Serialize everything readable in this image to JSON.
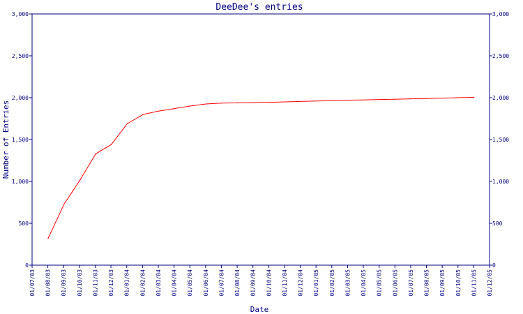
{
  "chart_data": {
    "type": "line",
    "title": "DeeDee's entries",
    "xlabel": "Date",
    "ylabel": "Number of Entries",
    "ylim": [
      0,
      3000
    ],
    "y_ticks": [
      0,
      500,
      1000,
      1500,
      2000,
      2500,
      3000
    ],
    "y_tick_labels": [
      "0",
      "500",
      "1,000",
      "1,500",
      "2,000",
      "2,500",
      "3,000"
    ],
    "x_tick_labels": [
      "01/07/03",
      "01/08/03",
      "01/09/03",
      "01/10/03",
      "01/11/03",
      "01/12/03",
      "01/01/04",
      "01/02/04",
      "01/03/04",
      "01/04/04",
      "01/05/04",
      "01/06/04",
      "01/07/04",
      "01/08/04",
      "01/09/04",
      "01/10/04",
      "01/11/04",
      "01/12/04",
      "01/01/05",
      "01/02/05",
      "01/03/05",
      "01/04/05",
      "01/05/05",
      "01/06/05",
      "01/07/05",
      "01/08/05",
      "01/09/05",
      "01/10/05",
      "01/11/05",
      "01/12/05"
    ],
    "grid": false,
    "y_axis_right": true,
    "series": [
      {
        "color": "#ff0000",
        "points": [
          {
            "x": "2003-08-01",
            "y": 320
          },
          {
            "x": "2003-09-01",
            "y": 730
          },
          {
            "x": "2003-10-01",
            "y": 1010
          },
          {
            "x": "2003-11-01",
            "y": 1330
          },
          {
            "x": "2003-12-01",
            "y": 1440
          },
          {
            "x": "2004-01-01",
            "y": 1690
          },
          {
            "x": "2004-02-01",
            "y": 1800
          },
          {
            "x": "2004-03-01",
            "y": 1840
          },
          {
            "x": "2004-04-01",
            "y": 1870
          },
          {
            "x": "2004-05-01",
            "y": 1900
          },
          {
            "x": "2004-06-01",
            "y": 1925
          },
          {
            "x": "2004-07-01",
            "y": 1935
          },
          {
            "x": "2004-08-01",
            "y": 1938
          },
          {
            "x": "2004-09-01",
            "y": 1942
          },
          {
            "x": "2004-10-01",
            "y": 1945
          },
          {
            "x": "2004-11-01",
            "y": 1950
          },
          {
            "x": "2004-12-01",
            "y": 1955
          },
          {
            "x": "2005-01-01",
            "y": 1960
          },
          {
            "x": "2005-02-01",
            "y": 1965
          },
          {
            "x": "2005-03-01",
            "y": 1970
          },
          {
            "x": "2005-04-01",
            "y": 1973
          },
          {
            "x": "2005-05-01",
            "y": 1978
          },
          {
            "x": "2005-06-01",
            "y": 1982
          },
          {
            "x": "2005-07-01",
            "y": 1987
          },
          {
            "x": "2005-08-01",
            "y": 1990
          },
          {
            "x": "2005-09-01",
            "y": 1995
          },
          {
            "x": "2005-10-01",
            "y": 2000
          },
          {
            "x": "2005-11-01",
            "y": 2005
          }
        ]
      }
    ],
    "axis_color": "#000080"
  }
}
